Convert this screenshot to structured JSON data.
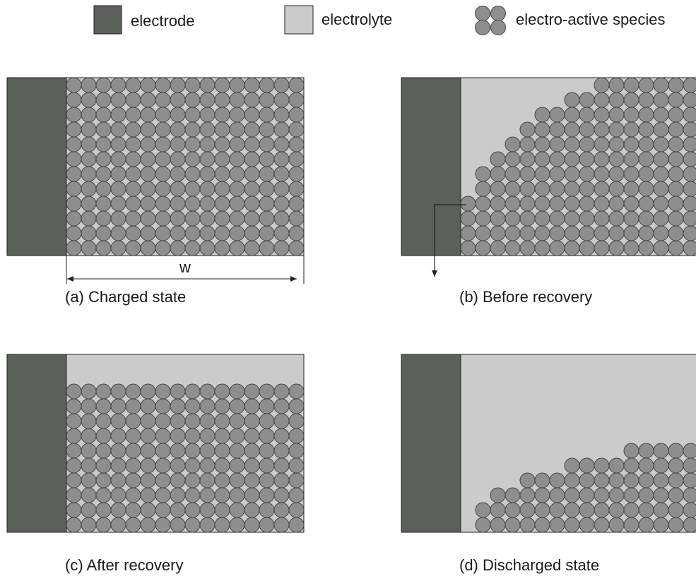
{
  "legend": [
    {
      "label": "electrode"
    },
    {
      "label": "electrolyte"
    },
    {
      "label": "electro-active species"
    }
  ],
  "dimension_label": "w",
  "panels": [
    {
      "caption": "(a) Charged state"
    },
    {
      "caption": "(b) Before recovery"
    },
    {
      "caption": "(c) After recovery"
    },
    {
      "caption": "(d) Discharged state"
    }
  ]
}
